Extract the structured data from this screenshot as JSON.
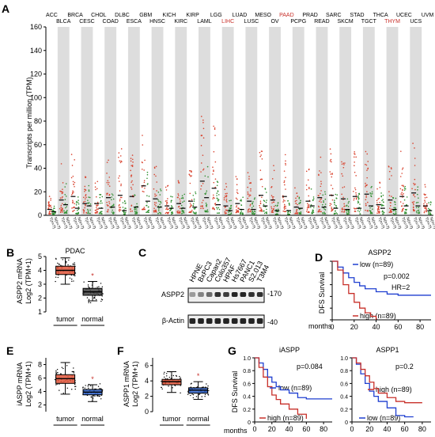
{
  "panels": {
    "A": {
      "letter": "A",
      "ylabel": "Transcripts per million (TPM)",
      "ylim": [
        0,
        160
      ],
      "yticks": [
        "0",
        "20",
        "40",
        "60",
        "80",
        "100",
        "120",
        "140",
        "160"
      ],
      "cancers": [
        "ACC",
        "BLCA",
        "BRCA",
        "CESC",
        "CHOL",
        "COAD",
        "DLBC",
        "ESCA",
        "GBM",
        "HNSC",
        "KICH",
        "KIRC",
        "KIRP",
        "LAML",
        "LGG",
        "LIHC",
        "LUAD",
        "LUSC",
        "MESO",
        "OV",
        "PAAD",
        "PCPG",
        "PRAD",
        "READ",
        "SARC",
        "SKCM",
        "STAD",
        "TGCT",
        "THCA",
        "THYM",
        "UCEC",
        "UCS",
        "UVM"
      ],
      "highlighted": [
        "LIHC",
        "PAAD",
        "THYM"
      ],
      "tumor_medians": [
        5,
        13,
        16,
        10,
        10,
        15,
        17,
        16,
        25,
        14,
        8,
        10,
        12,
        29,
        23,
        8,
        10,
        12,
        17,
        13,
        16,
        7,
        12,
        15,
        17,
        14,
        16,
        18,
        9,
        13,
        16,
        19,
        8
      ],
      "normal_medians": [
        3,
        9,
        6,
        8,
        6,
        7,
        4,
        7,
        12,
        7,
        6,
        6,
        7,
        15,
        9,
        4,
        5,
        5,
        8,
        4,
        4,
        6,
        8,
        7,
        6,
        5,
        6,
        8,
        6,
        5,
        8,
        8,
        4
      ],
      "sample_label": "T(n=?) N(n=?)"
    },
    "B": {
      "letter": "B",
      "title": "PDAC",
      "ylabel1": "ASPP2 mRNA",
      "ylabel2": "Log2 (TPM+1)",
      "yticks": [
        "1",
        "2",
        "3",
        "4",
        "5"
      ],
      "ylim": [
        1,
        5
      ],
      "groups": [
        "tumor",
        "normal"
      ],
      "tumor_box": {
        "q1": 3.7,
        "median": 4.0,
        "q3": 4.3,
        "min": 3.0,
        "max": 4.9
      },
      "normal_box": {
        "q1": 2.2,
        "median": 2.45,
        "q3": 2.7,
        "min": 1.8,
        "max": 3.2
      },
      "asterisk": "*"
    },
    "C": {
      "letter": "C",
      "lanes": [
        "HPNE",
        "BxPC3",
        "Capan2",
        "Colo357",
        "HPAF",
        "Hs7667",
        "PANC1",
        "S2.013",
        "T3M4"
      ],
      "rows": [
        "ASPP2",
        "β-Actin"
      ],
      "markers": [
        "-170",
        "-40"
      ]
    },
    "D": {
      "letter": "D",
      "title": "ASPP2",
      "ylabel": "DFS Survival",
      "xlabel": "months",
      "xticks": [
        "0",
        "20",
        "40",
        "60",
        "80"
      ],
      "legend_low": "low (n=89)",
      "legend_high": "high (n=89)",
      "pvalue": "p=0.002",
      "hr": "HR=2"
    },
    "E": {
      "letter": "E",
      "ylabel1": "iASPP mRNA",
      "ylabel2": "Log2 (TPM+1)",
      "yticks": [
        "2",
        "4",
        "6",
        "8"
      ],
      "ylim": [
        1,
        9
      ],
      "groups": [
        "tumor",
        "normal"
      ],
      "tumor_box": {
        "q1": 5.2,
        "median": 5.9,
        "q3": 6.5,
        "min": 3.6,
        "max": 8.3
      },
      "normal_box": {
        "q1": 3.5,
        "median": 3.9,
        "q3": 4.3,
        "min": 2.5,
        "max": 5.0
      },
      "asterisk": "*"
    },
    "F": {
      "letter": "F",
      "ylabel1": "ASPP1 mRNA",
      "ylabel2": "Log2 (TPM+1)",
      "yticks": [
        "0",
        "2",
        "4",
        "6"
      ],
      "ylim": [
        0,
        7
      ],
      "groups": [
        "tumor",
        "normal"
      ],
      "tumor_box": {
        "q1": 3.5,
        "median": 3.9,
        "q3": 4.2,
        "min": 2.5,
        "max": 5.2
      },
      "normal_box": {
        "q1": 2.4,
        "median": 2.8,
        "q3": 3.1,
        "min": 1.6,
        "max": 3.9
      },
      "asterisk": "*"
    },
    "G": {
      "letter": "G",
      "ylabel": "DFS Survival",
      "xlabel": "months",
      "xticks": [
        "0",
        "20",
        "40",
        "60",
        "80"
      ],
      "yticks": [
        "0",
        "0.2",
        "0.4",
        "0.6",
        "0.8",
        "1.0"
      ],
      "left": {
        "title": "iASPP",
        "pvalue": "p=0.084",
        "legend_low": "low (n=89)",
        "legend_high": "high (n=89)"
      },
      "right": {
        "title": "ASPP1",
        "pvalue": "p=0.2",
        "legend_low": "low (n=89)",
        "legend_high": "high (n=89)"
      }
    }
  },
  "colors": {
    "tumor": "#d9432e",
    "normal": "#2f8f2f",
    "tumor_box": "#e0553a",
    "normal_box": "#444444",
    "blue_box": "#2b5fc7",
    "km_low": "#1f3fd0",
    "km_high": "#c8302a",
    "highlight_text": "#c8302a",
    "stripe": "#dddddd"
  },
  "chart_data": [
    {
      "type": "scatter",
      "title": "",
      "ylabel": "Transcripts per million (TPM)",
      "ylim": [
        0,
        160
      ],
      "categories": [
        "ACC",
        "BLCA",
        "BRCA",
        "CESC",
        "CHOL",
        "COAD",
        "DLBC",
        "ESCA",
        "GBM",
        "HNSC",
        "KICH",
        "KIRC",
        "KIRP",
        "LAML",
        "LGG",
        "LIHC",
        "LUAD",
        "LUSC",
        "MESO",
        "OV",
        "PAAD",
        "PCPG",
        "PRAD",
        "READ",
        "SARC",
        "SKCM",
        "STAD",
        "TGCT",
        "THCA",
        "THYM",
        "UCEC",
        "UCS",
        "UVM"
      ],
      "series": [
        {
          "name": "tumor",
          "values": [
            5,
            13,
            16,
            10,
            10,
            15,
            17,
            16,
            25,
            14,
            8,
            10,
            12,
            29,
            23,
            8,
            10,
            12,
            17,
            13,
            16,
            7,
            12,
            15,
            17,
            14,
            16,
            18,
            9,
            13,
            16,
            19,
            8
          ]
        },
        {
          "name": "normal",
          "values": [
            3,
            9,
            6,
            8,
            6,
            7,
            4,
            7,
            12,
            7,
            6,
            6,
            7,
            15,
            9,
            4,
            5,
            5,
            8,
            4,
            4,
            6,
            8,
            7,
            6,
            5,
            6,
            8,
            6,
            5,
            8,
            8,
            4
          ]
        }
      ]
    },
    {
      "type": "box",
      "title": "PDAC",
      "categories": [
        "tumor",
        "normal"
      ],
      "ylabel": "ASPP2 mRNA Log2 (TPM+1)",
      "values": [
        4.0,
        2.45
      ]
    },
    {
      "type": "box",
      "categories": [
        "tumor",
        "normal"
      ],
      "ylabel": "iASPP mRNA Log2 (TPM+1)",
      "values": [
        5.9,
        3.9
      ]
    },
    {
      "type": "box",
      "categories": [
        "tumor",
        "normal"
      ],
      "ylabel": "ASPP1 mRNA Log2 (TPM+1)",
      "values": [
        3.9,
        2.8
      ]
    },
    {
      "type": "line",
      "title": "ASPP2",
      "xlabel": "months",
      "ylabel": "DFS Survival",
      "series": [
        {
          "name": "low (n=89)",
          "x": [
            0,
            5,
            10,
            15,
            20,
            25,
            30,
            40,
            50,
            60,
            70,
            80,
            90
          ],
          "y": [
            1.0,
            0.9,
            0.8,
            0.72,
            0.64,
            0.58,
            0.53,
            0.48,
            0.44,
            0.42,
            0.42,
            0.42,
            0.42
          ]
        },
        {
          "name": "high (n=89)",
          "x": [
            0,
            5,
            10,
            15,
            20,
            25,
            30,
            35,
            40
          ],
          "y": [
            1.0,
            0.85,
            0.6,
            0.45,
            0.3,
            0.2,
            0.12,
            0.06,
            0.0
          ]
        }
      ]
    },
    {
      "type": "line",
      "title": "iASPP",
      "xlabel": "months",
      "ylabel": "DFS Survival",
      "series": [
        {
          "name": "low (n=89)",
          "x": [
            0,
            5,
            10,
            15,
            20,
            25,
            30,
            40,
            50,
            60,
            70,
            80,
            90
          ],
          "y": [
            1.0,
            0.92,
            0.82,
            0.7,
            0.62,
            0.55,
            0.5,
            0.45,
            0.38,
            0.36,
            0.36,
            0.36,
            0.36
          ]
        },
        {
          "name": "high (n=89)",
          "x": [
            0,
            5,
            10,
            15,
            20,
            25,
            30,
            40,
            50,
            60
          ],
          "y": [
            1.0,
            0.85,
            0.7,
            0.55,
            0.42,
            0.35,
            0.28,
            0.2,
            0.12,
            0.05
          ]
        }
      ]
    },
    {
      "type": "line",
      "title": "ASPP1",
      "xlabel": "months",
      "ylabel": "DFS Survival",
      "series": [
        {
          "name": "low (n=89)",
          "x": [
            0,
            5,
            10,
            15,
            20,
            25,
            30,
            40,
            50,
            60,
            70
          ],
          "y": [
            1.0,
            0.9,
            0.75,
            0.6,
            0.48,
            0.4,
            0.32,
            0.22,
            0.1,
            0.08,
            0.08
          ]
        },
        {
          "name": "high (n=89)",
          "x": [
            0,
            5,
            10,
            15,
            20,
            25,
            30,
            40,
            50,
            60,
            70,
            80
          ],
          "y": [
            1.0,
            0.92,
            0.82,
            0.72,
            0.62,
            0.52,
            0.45,
            0.38,
            0.32,
            0.3,
            0.3,
            0.3
          ]
        }
      ]
    }
  ]
}
